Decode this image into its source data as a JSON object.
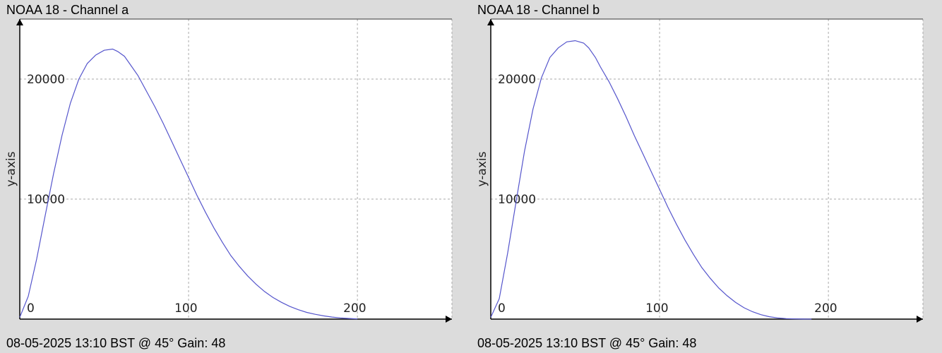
{
  "chart_data": [
    {
      "type": "line",
      "title": "NOAA 18 - Channel a",
      "footer": "08-05-2025 13:10 BST @ 45° Gain: 48",
      "ylabel": "y-axis",
      "xlabel": "",
      "xlim": [
        0,
        256
      ],
      "ylim": [
        0,
        25000
      ],
      "xticks": [
        0,
        100,
        200
      ],
      "yticks": [
        10000,
        20000
      ],
      "grid": true,
      "colors": {
        "line": "#5555cc",
        "grid": "#aaaaaa",
        "axis": "#000000",
        "plot_bg": "#ffffff"
      },
      "series": [
        {
          "x": [
            0,
            5,
            10,
            15,
            20,
            25,
            30,
            35,
            40,
            45,
            50,
            55,
            58,
            62,
            65,
            70,
            75,
            80,
            85,
            90,
            95,
            100,
            105,
            110,
            115,
            120,
            125,
            130,
            135,
            140,
            145,
            150,
            155,
            160,
            165,
            170,
            175,
            180,
            185,
            190,
            195,
            200
          ],
          "y": [
            150,
            1900,
            5000,
            8600,
            12100,
            15300,
            18000,
            20000,
            21300,
            22000,
            22400,
            22500,
            22300,
            21900,
            21300,
            20300,
            19000,
            17700,
            16300,
            14800,
            13300,
            11800,
            10300,
            8900,
            7600,
            6400,
            5300,
            4400,
            3600,
            2900,
            2300,
            1800,
            1400,
            1050,
            780,
            560,
            400,
            270,
            170,
            100,
            50,
            20
          ]
        }
      ]
    },
    {
      "type": "line",
      "title": "NOAA 18 - Channel b",
      "footer": "08-05-2025 13:10 BST @ 45° Gain: 48",
      "ylabel": "y-axis",
      "xlabel": "",
      "xlim": [
        0,
        256
      ],
      "ylim": [
        0,
        25000
      ],
      "xticks": [
        0,
        100,
        200
      ],
      "yticks": [
        10000,
        20000
      ],
      "grid": true,
      "colors": {
        "line": "#5555cc",
        "grid": "#aaaaaa",
        "axis": "#000000",
        "plot_bg": "#ffffff"
      },
      "series": [
        {
          "x": [
            0,
            5,
            10,
            15,
            20,
            25,
            30,
            35,
            40,
            45,
            50,
            55,
            58,
            62,
            65,
            70,
            75,
            80,
            85,
            90,
            95,
            100,
            105,
            110,
            115,
            120,
            125,
            130,
            135,
            140,
            145,
            150,
            155,
            160,
            165,
            170,
            175,
            180,
            185,
            190
          ],
          "y": [
            150,
            1700,
            5500,
            9800,
            14000,
            17500,
            20100,
            21800,
            22600,
            23100,
            23200,
            23000,
            22600,
            21800,
            21000,
            19800,
            18400,
            16900,
            15300,
            13800,
            12300,
            10800,
            9300,
            7900,
            6600,
            5400,
            4300,
            3400,
            2600,
            1950,
            1400,
            950,
            620,
            370,
            200,
            100,
            40,
            15,
            5,
            0
          ]
        }
      ]
    }
  ]
}
